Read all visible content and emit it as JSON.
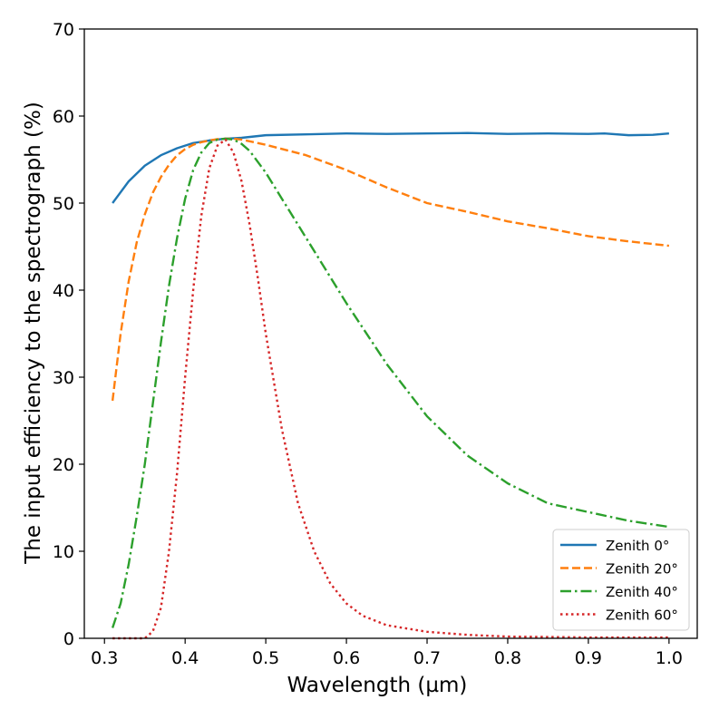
{
  "chart_data": {
    "type": "line",
    "title": "",
    "xlabel": "Wavelength (µm)",
    "ylabel": "The input efficiency to the spectrograph (%)",
    "xlim": [
      0.275,
      1.035
    ],
    "ylim": [
      0,
      70
    ],
    "xticks": [
      0.3,
      0.4,
      0.5,
      0.6,
      0.7,
      0.8,
      0.9,
      1.0
    ],
    "xtick_labels": [
      "0.3",
      "0.4",
      "0.5",
      "0.6",
      "0.7",
      "0.8",
      "0.9",
      "1.0"
    ],
    "yticks": [
      0,
      10,
      20,
      30,
      40,
      50,
      60,
      70
    ],
    "ytick_labels": [
      "0",
      "10",
      "20",
      "30",
      "40",
      "50",
      "60",
      "70"
    ],
    "grid": false,
    "legend_position": "bottom-right",
    "series": [
      {
        "name": "Zenith 0°",
        "color": "#1f77b4",
        "style": "solid",
        "x": [
          0.31,
          0.33,
          0.35,
          0.37,
          0.39,
          0.41,
          0.43,
          0.45,
          0.47,
          0.5,
          0.55,
          0.6,
          0.65,
          0.7,
          0.75,
          0.8,
          0.85,
          0.9,
          0.92,
          0.95,
          0.98,
          1.0
        ],
        "y": [
          50,
          52.5,
          54.3,
          55.5,
          56.3,
          56.9,
          57.2,
          57.4,
          57.5,
          57.8,
          57.9,
          58.0,
          57.95,
          58.0,
          58.05,
          57.95,
          58.0,
          57.95,
          58.0,
          57.8,
          57.85,
          58.0
        ]
      },
      {
        "name": "Zenith 20°",
        "color": "#ff7f0e",
        "style": "dashed",
        "x": [
          0.31,
          0.32,
          0.33,
          0.34,
          0.35,
          0.36,
          0.37,
          0.38,
          0.39,
          0.4,
          0.41,
          0.42,
          0.43,
          0.44,
          0.45,
          0.46,
          0.47,
          0.5,
          0.55,
          0.6,
          0.65,
          0.7,
          0.75,
          0.8,
          0.85,
          0.9,
          0.95,
          1.0
        ],
        "y": [
          27.3,
          35,
          41,
          45.5,
          48.7,
          51.2,
          53,
          54.4,
          55.5,
          56.2,
          56.7,
          57,
          57.2,
          57.35,
          57.4,
          57.4,
          57.3,
          56.7,
          55.5,
          53.8,
          51.8,
          50,
          49,
          47.9,
          47.1,
          46.2,
          45.6,
          45.1
        ]
      },
      {
        "name": "Zenith 40°",
        "color": "#2ca02c",
        "style": "dashdot",
        "x": [
          0.31,
          0.32,
          0.33,
          0.34,
          0.35,
          0.36,
          0.37,
          0.38,
          0.39,
          0.4,
          0.41,
          0.42,
          0.43,
          0.44,
          0.45,
          0.46,
          0.47,
          0.48,
          0.5,
          0.52,
          0.55,
          0.6,
          0.65,
          0.7,
          0.75,
          0.8,
          0.85,
          0.9,
          0.95,
          1.0
        ],
        "y": [
          1.2,
          4,
          8.5,
          14,
          20,
          27,
          34,
          40.5,
          46,
          50.5,
          53.8,
          55.8,
          56.9,
          57.3,
          57.4,
          57.3,
          56.8,
          56,
          53.5,
          50.5,
          46,
          38.5,
          31.5,
          25.5,
          21,
          17.8,
          15.5,
          14.5,
          13.5,
          12.8
        ]
      },
      {
        "name": "Zenith 60°",
        "color": "#d62728",
        "style": "dotted",
        "x": [
          0.31,
          0.33,
          0.35,
          0.36,
          0.37,
          0.38,
          0.39,
          0.4,
          0.41,
          0.42,
          0.43,
          0.44,
          0.45,
          0.46,
          0.47,
          0.48,
          0.49,
          0.5,
          0.52,
          0.54,
          0.56,
          0.58,
          0.6,
          0.62,
          0.65,
          0.7,
          0.75,
          0.8,
          0.85,
          0.9,
          0.95,
          1.0
        ],
        "y": [
          0,
          0,
          0,
          0.8,
          3.5,
          10,
          19,
          30,
          40,
          48.5,
          54,
          56.6,
          57.3,
          55.8,
          52.5,
          47.5,
          41.5,
          35,
          24,
          15.5,
          10,
          6.3,
          4,
          2.6,
          1.5,
          0.75,
          0.4,
          0.2,
          0.15,
          0.1,
          0.1,
          0.1
        ]
      }
    ]
  }
}
